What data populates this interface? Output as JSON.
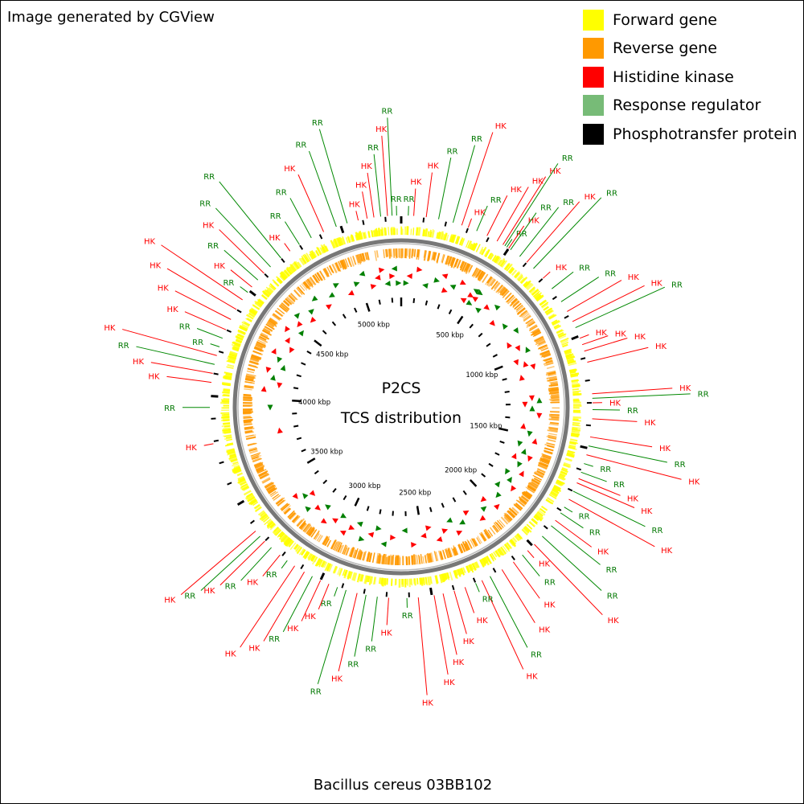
{
  "header": {
    "credit": "Image generated by CGView"
  },
  "legend": [
    {
      "label": "Forward gene",
      "color": "#ffff00"
    },
    {
      "label": "Reverse gene",
      "color": "#ff9900"
    },
    {
      "label": "Histidine kinase",
      "color": "#ff0000"
    },
    {
      "label": "Response regulator",
      "color": "#77bb77"
    },
    {
      "label": "Phosphotransfer protein",
      "color": "#000000"
    }
  ],
  "center": {
    "title": "P2CS",
    "subtitle": "TCS distribution"
  },
  "genome": {
    "name": "Bacillus cereus 03BB102",
    "length_kbp": 5270
  },
  "ruler": {
    "labels": [
      "500 kbp",
      "1000 kbp",
      "1500 kbp",
      "2000 kbp",
      "2500 kbp",
      "3000 kbp",
      "3500 kbp",
      "4000 kbp",
      "4500 kbp",
      "5000 kbp"
    ],
    "positions_kbp": [
      500,
      1000,
      1500,
      2000,
      2500,
      3000,
      3500,
      4000,
      4500,
      5000
    ]
  },
  "features": [
    {
      "kbp": 31,
      "type": "RR"
    },
    {
      "kbp": 55,
      "type": "HK"
    },
    {
      "kbp": 110,
      "type": "HK"
    },
    {
      "kbp": 165,
      "type": "RR"
    },
    {
      "kbp": 230,
      "type": "RR"
    },
    {
      "kbp": 270,
      "type": "HK"
    },
    {
      "kbp": 300,
      "type": "HK"
    },
    {
      "kbp": 340,
      "type": "RR"
    },
    {
      "kbp": 390,
      "type": "HK"
    },
    {
      "kbp": 440,
      "type": "HK"
    },
    {
      "kbp": 470,
      "type": "HK"
    },
    {
      "kbp": 480,
      "type": "RR"
    },
    {
      "kbp": 490,
      "type": "RR"
    },
    {
      "kbp": 500,
      "type": "HK"
    },
    {
      "kbp": 510,
      "type": "RR"
    },
    {
      "kbp": 560,
      "type": "RR"
    },
    {
      "kbp": 600,
      "type": "HK"
    },
    {
      "kbp": 640,
      "type": "RR"
    },
    {
      "kbp": 700,
      "type": "HK"
    },
    {
      "kbp": 760,
      "type": "RR"
    },
    {
      "kbp": 830,
      "type": "RR"
    },
    {
      "kbp": 880,
      "type": "HK"
    },
    {
      "kbp": 930,
      "type": "HK"
    },
    {
      "kbp": 960,
      "type": "RR"
    },
    {
      "kbp": 1010,
      "type": "HK"
    },
    {
      "kbp": 1040,
      "type": "HK"
    },
    {
      "kbp": 1070,
      "type": "HK"
    },
    {
      "kbp": 1120,
      "type": "HK"
    },
    {
      "kbp": 1260,
      "type": "HK"
    },
    {
      "kbp": 1280,
      "type": "RR"
    },
    {
      "kbp": 1300,
      "type": "HK"
    },
    {
      "kbp": 1330,
      "type": "RR"
    },
    {
      "kbp": 1370,
      "type": "HK"
    },
    {
      "kbp": 1450,
      "type": "HK"
    },
    {
      "kbp": 1490,
      "type": "RR"
    },
    {
      "kbp": 1530,
      "type": "HK"
    },
    {
      "kbp": 1570,
      "type": "RR"
    },
    {
      "kbp": 1610,
      "type": "RR"
    },
    {
      "kbp": 1640,
      "type": "HK"
    },
    {
      "kbp": 1660,
      "type": "HK"
    },
    {
      "kbp": 1700,
      "type": "RR"
    },
    {
      "kbp": 1740,
      "type": "HK"
    },
    {
      "kbp": 1780,
      "type": "RR"
    },
    {
      "kbp": 1810,
      "type": "RR"
    },
    {
      "kbp": 1850,
      "type": "HK"
    },
    {
      "kbp": 1880,
      "type": "RR"
    },
    {
      "kbp": 1940,
      "type": "RR"
    },
    {
      "kbp": 1990,
      "type": "HK"
    },
    {
      "kbp": 2030,
      "type": "HK"
    },
    {
      "kbp": 2060,
      "type": "RR"
    },
    {
      "kbp": 2110,
      "type": "HK"
    },
    {
      "kbp": 2170,
      "type": "HK"
    },
    {
      "kbp": 2230,
      "type": "RR"
    },
    {
      "kbp": 2270,
      "type": "HK"
    },
    {
      "kbp": 2300,
      "type": "RR"
    },
    {
      "kbp": 2350,
      "type": "HK"
    },
    {
      "kbp": 2400,
      "type": "HK"
    },
    {
      "kbp": 2450,
      "type": "HK"
    },
    {
      "kbp": 2490,
      "type": "HK"
    },
    {
      "kbp": 2560,
      "type": "HK"
    },
    {
      "kbp": 2610,
      "type": "RR"
    },
    {
      "kbp": 2690,
      "type": "HK"
    },
    {
      "kbp": 2740,
      "type": "RR"
    },
    {
      "kbp": 2790,
      "type": "RR"
    },
    {
      "kbp": 2830,
      "type": "HK"
    },
    {
      "kbp": 2880,
      "type": "RR"
    },
    {
      "kbp": 2920,
      "type": "RR"
    },
    {
      "kbp": 2960,
      "type": "HK"
    },
    {
      "kbp": 3000,
      "type": "HK"
    },
    {
      "kbp": 3040,
      "type": "RR"
    },
    {
      "kbp": 3080,
      "type": "HK"
    },
    {
      "kbp": 3130,
      "type": "HK"
    },
    {
      "kbp": 3170,
      "type": "RR"
    },
    {
      "kbp": 3210,
      "type": "HK"
    },
    {
      "kbp": 3260,
      "type": "RR"
    },
    {
      "kbp": 3300,
      "type": "HK"
    },
    {
      "kbp": 3330,
      "type": "RR"
    },
    {
      "kbp": 3360,
      "type": "HK"
    },
    {
      "kbp": 3790,
      "type": "HK"
    },
    {
      "kbp": 3950,
      "type": "RR"
    },
    {
      "kbp": 4060,
      "type": "HK"
    },
    {
      "kbp": 4100,
      "type": "HK"
    },
    {
      "kbp": 4140,
      "type": "RR"
    },
    {
      "kbp": 4180,
      "type": "HK"
    },
    {
      "kbp": 4220,
      "type": "RR"
    },
    {
      "kbp": 4260,
      "type": "RR"
    },
    {
      "kbp": 4300,
      "type": "HK"
    },
    {
      "kbp": 4350,
      "type": "HK"
    },
    {
      "kbp": 4400,
      "type": "HK"
    },
    {
      "kbp": 4450,
      "type": "HK"
    },
    {
      "kbp": 4490,
      "type": "RR"
    },
    {
      "kbp": 4520,
      "type": "HK"
    },
    {
      "kbp": 4560,
      "type": "RR"
    },
    {
      "kbp": 4600,
      "type": "HK"
    },
    {
      "kbp": 4640,
      "type": "RR"
    },
    {
      "kbp": 4700,
      "type": "RR"
    },
    {
      "kbp": 4750,
      "type": "HK"
    },
    {
      "kbp": 4800,
      "type": "RR"
    },
    {
      "kbp": 4860,
      "type": "RR"
    },
    {
      "kbp": 4920,
      "type": "HK"
    },
    {
      "kbp": 4980,
      "type": "RR"
    },
    {
      "kbp": 5030,
      "type": "RR"
    },
    {
      "kbp": 5080,
      "type": "HK"
    },
    {
      "kbp": 5120,
      "type": "HK"
    },
    {
      "kbp": 5150,
      "type": "HK"
    },
    {
      "kbp": 5180,
      "type": "RR"
    },
    {
      "kbp": 5210,
      "type": "HK"
    },
    {
      "kbp": 5230,
      "type": "RR"
    },
    {
      "kbp": 5250,
      "type": "RR"
    }
  ]
}
